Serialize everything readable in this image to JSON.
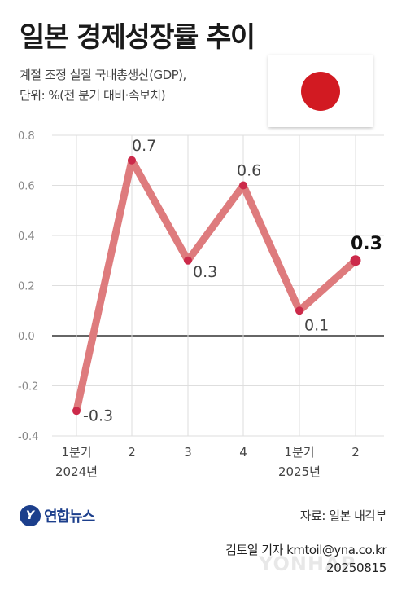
{
  "header": {
    "title": "일본 경제성장률 추이",
    "subtitle_line1": "계절 조정 실질 국내총생산(GDP),",
    "subtitle_line2": "단위: %(전 분기 대비·속보치)"
  },
  "flag_icon": "japan-flag-icon",
  "colors": {
    "line": "#de7b7d",
    "marker": "#cc2a4a",
    "zero_line": "#333333",
    "flag_red": "#d21a22",
    "logo_blue": "#1c3f8c"
  },
  "chart_data": {
    "type": "line",
    "categories": [
      "1분기",
      "2",
      "3",
      "4",
      "1분기",
      "2"
    ],
    "year_labels": [
      "2024년",
      "",
      "",
      "",
      "2025년",
      ""
    ],
    "values": [
      -0.3,
      0.7,
      0.3,
      0.6,
      0.1,
      0.3
    ],
    "value_labels": [
      "-0.3",
      "0.7",
      "0.3",
      "0.6",
      "0.1",
      "0.3"
    ],
    "ylim": [
      -0.4,
      0.8
    ],
    "yticks": [
      -0.4,
      -0.2,
      0.0,
      0.2,
      0.4,
      0.6,
      0.8
    ],
    "ytick_labels": [
      "-0.4",
      "-0.2",
      "0.0",
      "0.2",
      "0.4",
      "0.6",
      "0.8"
    ],
    "grid": true,
    "title": "일본 경제성장률 추이",
    "xlabel": "",
    "ylabel": ""
  },
  "footer": {
    "logo_text": "연합뉴스",
    "source": "자료: 일본 내각부",
    "credit": "김토일 기자 kmtoil@yna.co.kr",
    "date": "20250815",
    "watermark": "YONHAP"
  }
}
